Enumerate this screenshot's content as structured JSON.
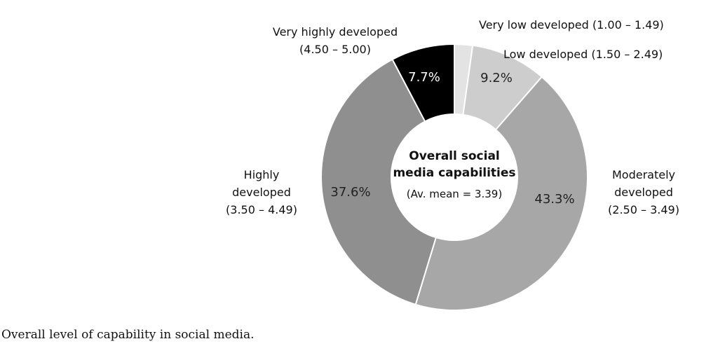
{
  "chart_data": {
    "type": "pie",
    "variant": "donut",
    "title": "Overall social media capabilities",
    "subtitle": "(Av. mean = 3.39)",
    "unit": "%",
    "slices": [
      {
        "label_lines": [
          "Very low developed (1.00 – 1.49)"
        ],
        "value": 2.2,
        "value_label": "",
        "color": "#e3e3e3"
      },
      {
        "label_lines": [
          "Low developed (1.50 – 2.49)"
        ],
        "value": 9.2,
        "value_label": "9.2%",
        "color": "#cdcdcd"
      },
      {
        "label_lines": [
          "Moderately",
          "developed",
          "(2.50 – 3.49)"
        ],
        "value": 43.3,
        "value_label": "43.3%",
        "color": "#a7a7a7"
      },
      {
        "label_lines": [
          "Highly",
          "developed",
          "(3.50 – 4.49)"
        ],
        "value": 37.6,
        "value_label": "37.6%",
        "color": "#8f8f8f"
      },
      {
        "label_lines": [
          "Very highly developed",
          "(4.50 – 5.00)"
        ],
        "value": 7.7,
        "value_label": "7.7%",
        "color": "#000000"
      }
    ]
  },
  "caption": "Overall level of capability in social media."
}
